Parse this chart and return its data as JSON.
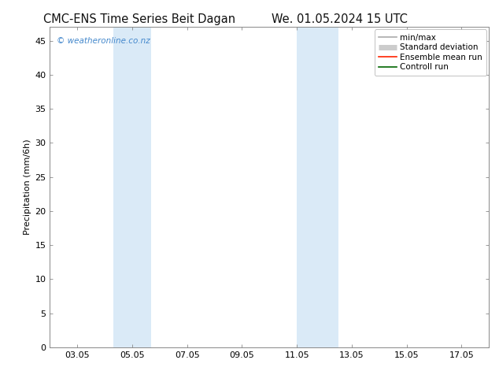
{
  "title_left": "CMC-ENS Time Series Beit Dagan",
  "title_right": "We. 01.05.2024 15 UTC",
  "ylabel": "Precipitation (mm/6h)",
  "xlabel": "",
  "ylim": [
    0,
    47
  ],
  "yticks": [
    0,
    5,
    10,
    15,
    20,
    25,
    30,
    35,
    40,
    45
  ],
  "xtick_labels": [
    "03.05",
    "05.05",
    "07.05",
    "09.05",
    "11.05",
    "13.05",
    "15.05",
    "17.05"
  ],
  "xtick_positions": [
    3,
    5,
    7,
    9,
    11,
    13,
    15,
    17
  ],
  "xlim": [
    2.0,
    18.0
  ],
  "shade_bands": [
    {
      "xmin": 4.3,
      "xmax": 5.7
    },
    {
      "xmin": 11.0,
      "xmax": 12.5
    }
  ],
  "shade_color": "#daeaf7",
  "watermark": "© weatheronline.co.nz",
  "watermark_color": "#4488cc",
  "legend_entries": [
    {
      "label": "min/max",
      "color": "#aaaaaa",
      "lw": 1.2
    },
    {
      "label": "Standard deviation",
      "color": "#cccccc",
      "lw": 5
    },
    {
      "label": "Ensemble mean run",
      "color": "#ff2200",
      "lw": 1.2
    },
    {
      "label": "Controll run",
      "color": "#006600",
      "lw": 1.2
    }
  ],
  "bg_color": "#ffffff",
  "title_fontsize": 10.5,
  "axis_fontsize": 8,
  "tick_fontsize": 8,
  "legend_fontsize": 7.5,
  "watermark_fontsize": 7.5,
  "spine_color": "#888888",
  "spine_lw": 0.7
}
